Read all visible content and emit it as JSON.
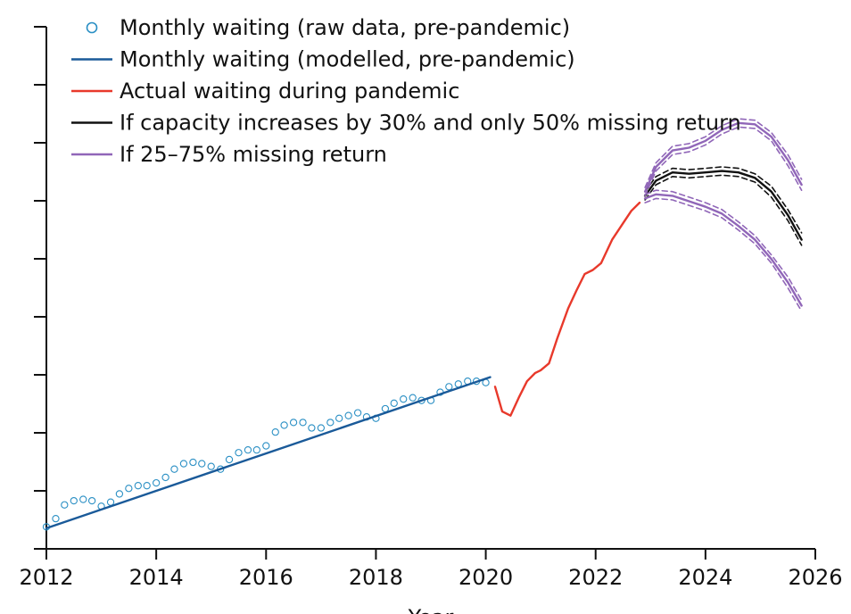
{
  "chart_data": {
    "type": "line",
    "title": "",
    "xlabel": "Year",
    "ylabel": "",
    "xlim": [
      2012,
      2026
    ],
    "ylim": [
      4.2,
      8.0
    ],
    "x_ticks": [
      "2012",
      "2014",
      "2016",
      "2018",
      "2020",
      "2022",
      "2024",
      "2026"
    ],
    "y_tick_count": 10,
    "y_tick_labels_visible": false,
    "grid": false,
    "legend_position": "top-left",
    "colors": {
      "raw": "#2a8fc4",
      "modelled": "#1a5a99",
      "pandemic": "#e8392b",
      "scenario_30": "#111111",
      "scenario_25_75": "#9066b8"
    },
    "legend": [
      {
        "key": "raw",
        "label": "Monthly waiting (raw data, pre-pandemic)",
        "marker": "circle"
      },
      {
        "key": "modelled",
        "label": "Monthly waiting (modelled, pre-pandemic)",
        "marker": "line"
      },
      {
        "key": "pandemic",
        "label": "Actual waiting during pandemic",
        "marker": "line"
      },
      {
        "key": "scenario_30",
        "label": "If capacity increases by 30% and only 50% missing return",
        "marker": "line"
      },
      {
        "key": "scenario_25_75",
        "label": "If 25–75% missing return",
        "marker": "line"
      }
    ],
    "series": [
      {
        "key": "raw",
        "style": "markers",
        "points": [
          [
            2012.0,
            4.36
          ],
          [
            2012.17,
            4.42
          ],
          [
            2012.33,
            4.52
          ],
          [
            2012.5,
            4.55
          ],
          [
            2012.67,
            4.56
          ],
          [
            2012.83,
            4.55
          ],
          [
            2013.0,
            4.51
          ],
          [
            2013.17,
            4.54
          ],
          [
            2013.33,
            4.6
          ],
          [
            2013.5,
            4.64
          ],
          [
            2013.67,
            4.66
          ],
          [
            2013.83,
            4.66
          ],
          [
            2014.0,
            4.68
          ],
          [
            2014.17,
            4.72
          ],
          [
            2014.33,
            4.78
          ],
          [
            2014.5,
            4.82
          ],
          [
            2014.67,
            4.83
          ],
          [
            2014.83,
            4.82
          ],
          [
            2015.0,
            4.8
          ],
          [
            2015.17,
            4.78
          ],
          [
            2015.33,
            4.85
          ],
          [
            2015.5,
            4.9
          ],
          [
            2015.67,
            4.92
          ],
          [
            2015.83,
            4.92
          ],
          [
            2016.0,
            4.95
          ],
          [
            2016.17,
            5.05
          ],
          [
            2016.33,
            5.1
          ],
          [
            2016.5,
            5.12
          ],
          [
            2016.67,
            5.12
          ],
          [
            2016.83,
            5.08
          ],
          [
            2017.0,
            5.08
          ],
          [
            2017.17,
            5.12
          ],
          [
            2017.33,
            5.15
          ],
          [
            2017.5,
            5.17
          ],
          [
            2017.67,
            5.19
          ],
          [
            2017.83,
            5.16
          ],
          [
            2018.0,
            5.15
          ],
          [
            2018.17,
            5.22
          ],
          [
            2018.33,
            5.26
          ],
          [
            2018.5,
            5.29
          ],
          [
            2018.67,
            5.3
          ],
          [
            2018.83,
            5.28
          ],
          [
            2019.0,
            5.28
          ],
          [
            2019.17,
            5.34
          ],
          [
            2019.33,
            5.38
          ],
          [
            2019.5,
            5.4
          ],
          [
            2019.67,
            5.42
          ],
          [
            2019.83,
            5.42
          ],
          [
            2020.0,
            5.41
          ]
        ]
      },
      {
        "key": "modelled",
        "style": "solid",
        "points": [
          [
            2012.0,
            4.35
          ],
          [
            2020.08,
            5.45
          ]
        ]
      },
      {
        "key": "pandemic",
        "style": "solid",
        "points": [
          [
            2020.17,
            5.38
          ],
          [
            2020.3,
            5.2
          ],
          [
            2020.45,
            5.17
          ],
          [
            2020.6,
            5.3
          ],
          [
            2020.75,
            5.42
          ],
          [
            2020.9,
            5.48
          ],
          [
            2021.0,
            5.5
          ],
          [
            2021.15,
            5.55
          ],
          [
            2021.3,
            5.73
          ],
          [
            2021.5,
            5.95
          ],
          [
            2021.65,
            6.08
          ],
          [
            2021.8,
            6.2
          ],
          [
            2021.95,
            6.23
          ],
          [
            2022.1,
            6.28
          ],
          [
            2022.3,
            6.45
          ],
          [
            2022.5,
            6.57
          ],
          [
            2022.65,
            6.66
          ],
          [
            2022.8,
            6.72
          ]
        ]
      },
      {
        "key": "scenario_30",
        "style": "solid",
        "points": [
          [
            2022.9,
            6.77
          ],
          [
            2023.1,
            6.88
          ],
          [
            2023.4,
            6.94
          ],
          [
            2023.7,
            6.93
          ],
          [
            2024.0,
            6.94
          ],
          [
            2024.3,
            6.95
          ],
          [
            2024.6,
            6.94
          ],
          [
            2024.9,
            6.9
          ],
          [
            2025.2,
            6.8
          ],
          [
            2025.5,
            6.63
          ],
          [
            2025.75,
            6.45
          ]
        ]
      },
      {
        "key": "scenario_30_upper",
        "style": "dashed",
        "legend_key": "scenario_30",
        "points": [
          [
            2022.9,
            6.8
          ],
          [
            2023.1,
            6.91
          ],
          [
            2023.4,
            6.97
          ],
          [
            2023.7,
            6.96
          ],
          [
            2024.0,
            6.97
          ],
          [
            2024.3,
            6.98
          ],
          [
            2024.6,
            6.97
          ],
          [
            2024.9,
            6.93
          ],
          [
            2025.2,
            6.84
          ],
          [
            2025.5,
            6.67
          ],
          [
            2025.75,
            6.5
          ]
        ]
      },
      {
        "key": "scenario_30_lower",
        "style": "dashed",
        "legend_key": "scenario_30",
        "points": [
          [
            2022.9,
            6.74
          ],
          [
            2023.1,
            6.85
          ],
          [
            2023.4,
            6.91
          ],
          [
            2023.7,
            6.9
          ],
          [
            2024.0,
            6.91
          ],
          [
            2024.3,
            6.92
          ],
          [
            2024.6,
            6.91
          ],
          [
            2024.9,
            6.87
          ],
          [
            2025.2,
            6.76
          ],
          [
            2025.5,
            6.59
          ],
          [
            2025.75,
            6.41
          ]
        ]
      },
      {
        "key": "scenario_25_75_high",
        "style": "solid",
        "legend_key": "scenario_25_75",
        "points": [
          [
            2022.9,
            6.8
          ],
          [
            2023.1,
            6.98
          ],
          [
            2023.4,
            7.1
          ],
          [
            2023.7,
            7.12
          ],
          [
            2024.0,
            7.17
          ],
          [
            2024.3,
            7.25
          ],
          [
            2024.6,
            7.3
          ],
          [
            2024.9,
            7.29
          ],
          [
            2025.2,
            7.2
          ],
          [
            2025.5,
            7.03
          ],
          [
            2025.75,
            6.85
          ]
        ]
      },
      {
        "key": "scenario_25_75_high_upper",
        "style": "dashed",
        "legend_key": "scenario_25_75",
        "points": [
          [
            2022.9,
            6.83
          ],
          [
            2023.1,
            7.01
          ],
          [
            2023.4,
            7.13
          ],
          [
            2023.7,
            7.15
          ],
          [
            2024.0,
            7.2
          ],
          [
            2024.3,
            7.28
          ],
          [
            2024.6,
            7.33
          ],
          [
            2024.9,
            7.32
          ],
          [
            2025.2,
            7.23
          ],
          [
            2025.5,
            7.07
          ],
          [
            2025.75,
            6.89
          ]
        ]
      },
      {
        "key": "scenario_25_75_high_lower",
        "style": "dashed",
        "legend_key": "scenario_25_75",
        "points": [
          [
            2022.9,
            6.77
          ],
          [
            2023.1,
            6.95
          ],
          [
            2023.4,
            7.07
          ],
          [
            2023.7,
            7.09
          ],
          [
            2024.0,
            7.14
          ],
          [
            2024.3,
            7.22
          ],
          [
            2024.6,
            7.27
          ],
          [
            2024.9,
            7.26
          ],
          [
            2025.2,
            7.17
          ],
          [
            2025.5,
            6.99
          ],
          [
            2025.75,
            6.81
          ]
        ]
      },
      {
        "key": "scenario_25_75_low",
        "style": "solid",
        "legend_key": "scenario_25_75",
        "points": [
          [
            2022.9,
            6.75
          ],
          [
            2023.1,
            6.78
          ],
          [
            2023.4,
            6.77
          ],
          [
            2023.7,
            6.73
          ],
          [
            2024.0,
            6.69
          ],
          [
            2024.3,
            6.64
          ],
          [
            2024.6,
            6.55
          ],
          [
            2024.9,
            6.45
          ],
          [
            2025.2,
            6.31
          ],
          [
            2025.5,
            6.14
          ],
          [
            2025.75,
            5.97
          ]
        ]
      },
      {
        "key": "scenario_25_75_low_upper",
        "style": "dashed",
        "legend_key": "scenario_25_75",
        "points": [
          [
            2022.9,
            6.78
          ],
          [
            2023.1,
            6.81
          ],
          [
            2023.4,
            6.8
          ],
          [
            2023.7,
            6.76
          ],
          [
            2024.0,
            6.72
          ],
          [
            2024.3,
            6.67
          ],
          [
            2024.6,
            6.58
          ],
          [
            2024.9,
            6.48
          ],
          [
            2025.2,
            6.34
          ],
          [
            2025.5,
            6.18
          ],
          [
            2025.75,
            6.01
          ]
        ]
      },
      {
        "key": "scenario_25_75_low_lower",
        "style": "dashed",
        "legend_key": "scenario_25_75",
        "points": [
          [
            2022.9,
            6.72
          ],
          [
            2023.1,
            6.75
          ],
          [
            2023.4,
            6.74
          ],
          [
            2023.7,
            6.7
          ],
          [
            2024.0,
            6.66
          ],
          [
            2024.3,
            6.61
          ],
          [
            2024.6,
            6.52
          ],
          [
            2024.9,
            6.42
          ],
          [
            2025.2,
            6.28
          ],
          [
            2025.5,
            6.1
          ],
          [
            2025.75,
            5.93
          ]
        ]
      }
    ]
  }
}
